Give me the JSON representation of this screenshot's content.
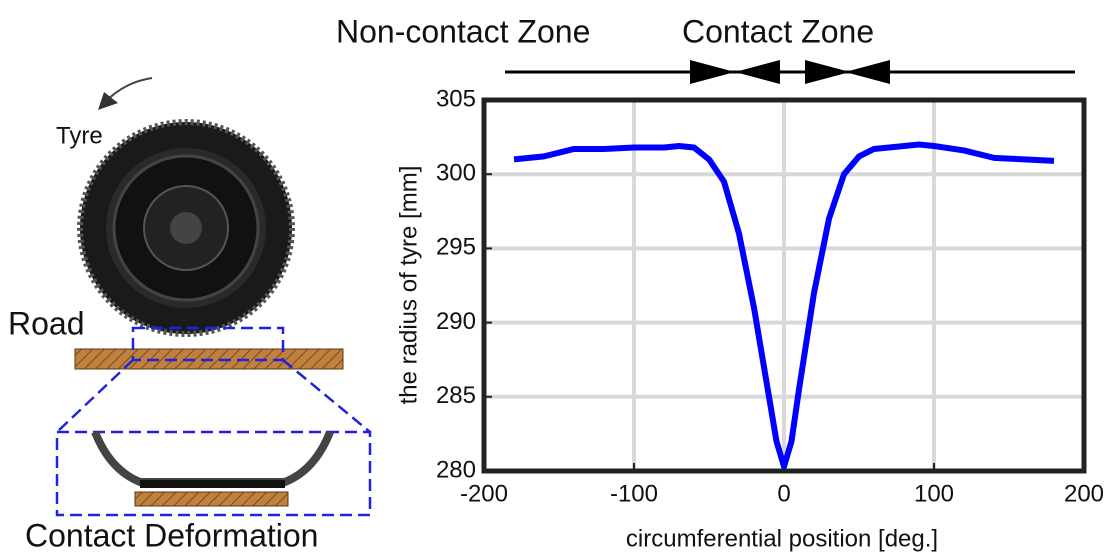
{
  "chart_data": {
    "type": "line",
    "xlabel": "circumferential position [deg.]",
    "ylabel": "the radius of tyre [mm]",
    "annotations": [
      "Non-contact Zone",
      "Contact Zone",
      "Tyre",
      "Road",
      "Contact Deformation"
    ],
    "x": [
      -180,
      -160,
      -140,
      -120,
      -100,
      -80,
      -70,
      -60,
      -50,
      -40,
      -30,
      -20,
      -10,
      -5,
      0,
      5,
      10,
      20,
      30,
      40,
      50,
      60,
      80,
      90,
      100,
      120,
      140,
      160,
      180
    ],
    "series": [
      {
        "color": "#0000ff",
        "values": [
          301,
          301.2,
          301.7,
          301.7,
          301.8,
          301.8,
          301.9,
          301.8,
          301,
          299.5,
          296,
          291,
          285,
          282,
          280.3,
          282,
          285.5,
          292,
          297,
          300,
          301.2,
          301.7,
          301.9,
          302,
          301.9,
          301.6,
          301.1,
          301,
          300.9
        ]
      }
    ],
    "xlim": [
      -200,
      200
    ],
    "xticks": [
      -200,
      -100,
      0,
      100,
      200
    ],
    "ylim": [
      280,
      305
    ],
    "yticks": [
      280,
      285,
      290,
      295,
      300,
      305
    ],
    "grid": true
  }
}
